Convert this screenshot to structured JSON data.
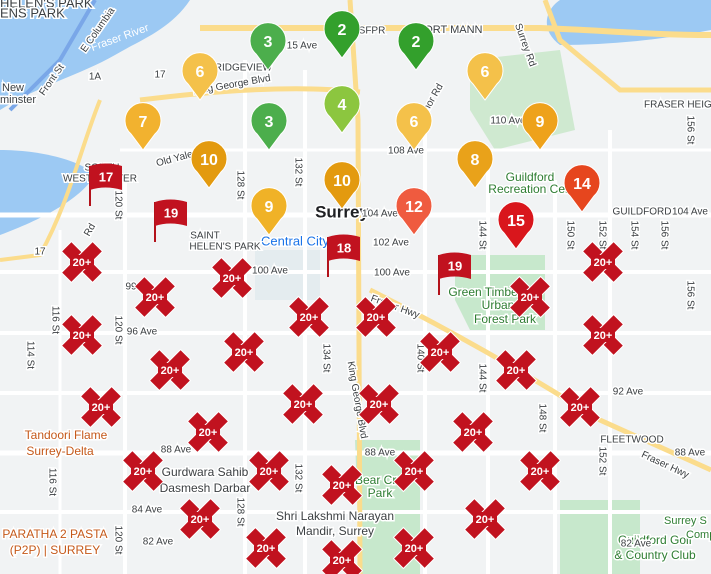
{
  "map": {
    "labels": [
      "Surrey",
      "Central City",
      "SAINT",
      "HELEN'S PARK",
      "FRASER HEIG",
      "GUILDFORD",
      "SOUTH",
      "WESTMINSTER",
      "Green Timbers",
      "Urban",
      "Forest Park",
      "Guildford",
      "Recreation Cen",
      "Tandoori Flame",
      "Surrey-Delta",
      "Gurdwara Sahib",
      "Dasmesh Darbar",
      "Bear Cr",
      "Park",
      "Shri Lakshmi Narayan",
      "Mandir, Surrey",
      "PARATHA 2 PASTA",
      "(P2P) | SURREY",
      "Guildford Golf",
      "& Country Club",
      "Surrey S",
      "Comp",
      "Fraser River",
      "FORT MANN",
      "BRIDGEVIEW",
      "HELEN'S PARK",
      "ENS PARK",
      "New",
      "minster",
      "SFPR",
      "King George Blvd",
      "Fraser Hwy",
      "Fraser Hwy",
      "E Columbia",
      "Old Yale Rd",
      "Surrey Rd",
      "enor Rd",
      "15 Ave"
    ],
    "street_labels": [
      "104 Ave",
      "102 Ave",
      "100 Ave",
      "100 Ave",
      "99",
      "96 Ave",
      "92 Ave",
      "88 Ave",
      "88 Ave",
      "88 Ave",
      "84 Ave",
      "82 Ave",
      "82 Ave",
      "108 Ave",
      "110 Ave",
      "104 Ave",
      "FLEETWOOD",
      "120 St",
      "128 St",
      "132 St",
      "134 St",
      "140 St",
      "144 St",
      "148 St",
      "152 St",
      "156 St",
      "116 St",
      "116 St",
      "114 St",
      "120 St",
      "132 St",
      "128 St",
      "144 St",
      "150 St",
      "154 St",
      "156 St",
      "152 St",
      "156 St",
      "17",
      "17",
      "1A",
      "Front St",
      "King George Blvd",
      "Rd",
      "120 St"
    ],
    "pin_markers": [
      "3",
      "2",
      "2",
      "6",
      "6",
      "7",
      "3",
      "4",
      "6",
      "9",
      "10",
      "10",
      "8",
      "9",
      "12",
      "14",
      "15"
    ],
    "flag_markers": [
      "17",
      "19",
      "18",
      "19"
    ],
    "cluster_markers": [
      "20+",
      "20+",
      "20+",
      "20+",
      "20+",
      "20+",
      "20+",
      "20+",
      "20+",
      "20+",
      "20+",
      "20+",
      "20+",
      "20+",
      "20+",
      "20+",
      "20+",
      "20+",
      "20+",
      "20+",
      "20+",
      "20+",
      "20+",
      "20+",
      "20+",
      "20+",
      "20+",
      "20+",
      "20+"
    ]
  }
}
